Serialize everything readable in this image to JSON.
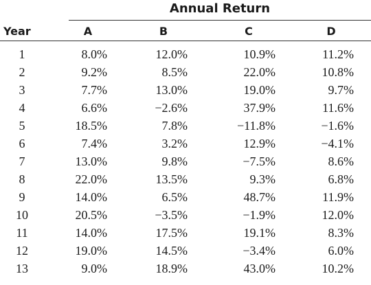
{
  "table": {
    "group_header": "Annual Return",
    "year_header": "Year",
    "column_headers": [
      "A",
      "B",
      "C",
      "D"
    ],
    "rows": [
      {
        "year": "1",
        "a": "8.0%",
        "b": "12.0%",
        "c": "10.9%",
        "d": "11.2%"
      },
      {
        "year": "2",
        "a": "9.2%",
        "b": "8.5%",
        "c": "22.0%",
        "d": "10.8%"
      },
      {
        "year": "3",
        "a": "7.7%",
        "b": "13.0%",
        "c": "19.0%",
        "d": "9.7%"
      },
      {
        "year": "4",
        "a": "6.6%",
        "b": "−2.6%",
        "c": "37.9%",
        "d": "11.6%"
      },
      {
        "year": "5",
        "a": "18.5%",
        "b": "7.8%",
        "c": "−11.8%",
        "d": "−1.6%"
      },
      {
        "year": "6",
        "a": "7.4%",
        "b": "3.2%",
        "c": "12.9%",
        "d": "−4.1%"
      },
      {
        "year": "7",
        "a": "13.0%",
        "b": "9.8%",
        "c": "−7.5%",
        "d": "8.6%"
      },
      {
        "year": "8",
        "a": "22.0%",
        "b": "13.5%",
        "c": "9.3%",
        "d": "6.8%"
      },
      {
        "year": "9",
        "a": "14.0%",
        "b": "6.5%",
        "c": "48.7%",
        "d": "11.9%"
      },
      {
        "year": "10",
        "a": "20.5%",
        "b": "−3.5%",
        "c": "−1.9%",
        "d": "12.0%"
      },
      {
        "year": "11",
        "a": "14.0%",
        "b": "17.5%",
        "c": "19.1%",
        "d": "8.3%"
      },
      {
        "year": "12",
        "a": "19.0%",
        "b": "14.5%",
        "c": "−3.4%",
        "d": "6.0%"
      },
      {
        "year": "13",
        "a": "9.0%",
        "b": "18.9%",
        "c": "43.0%",
        "d": "10.2%"
      }
    ]
  }
}
